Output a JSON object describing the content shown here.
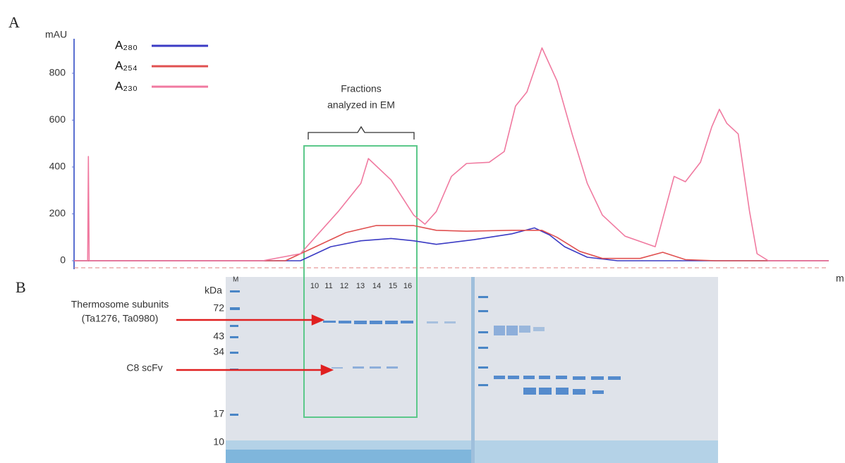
{
  "panel_labels": [
    "A",
    "B"
  ],
  "chart_data": {
    "type": "line",
    "ylabel": "mAU",
    "xlabel": "m",
    "ylim": [
      -30,
      950
    ],
    "yticks": [
      0,
      200,
      400,
      600,
      800
    ],
    "xlim": [
      0,
      100
    ],
    "annotation": [
      "Fractions",
      "analyzed in EM"
    ],
    "series": [
      {
        "name": "A₂₈₀",
        "color": "#3b3bc4",
        "x": [
          0,
          30,
          34,
          38,
          42,
          45,
          48,
          53,
          58,
          61,
          63,
          65,
          68,
          72,
          100
        ],
        "values": [
          0,
          0,
          60,
          85,
          95,
          85,
          70,
          90,
          115,
          140,
          110,
          60,
          15,
          0,
          0
        ]
      },
      {
        "name": "A₂₅₄",
        "color": "#e05050",
        "x": [
          0,
          28,
          32,
          36,
          40,
          45,
          48,
          52,
          58,
          62,
          64,
          67,
          70,
          75,
          78,
          81,
          85,
          100
        ],
        "values": [
          0,
          0,
          60,
          120,
          150,
          150,
          130,
          126,
          130,
          130,
          100,
          40,
          10,
          10,
          36,
          5,
          0,
          0
        ]
      },
      {
        "name": "A₂₃₀",
        "color": "#f07aa0",
        "x": [
          0,
          1.8,
          1.9,
          2.0,
          25,
          30,
          35,
          38,
          39,
          42,
          45,
          46.5,
          48,
          50,
          52,
          55,
          57,
          58.5,
          60,
          62,
          64,
          66,
          68,
          70,
          73,
          77,
          78.5,
          79.5,
          81,
          83,
          84.5,
          85.5,
          86.5,
          88,
          89.5,
          90.5,
          92,
          100
        ],
        "values": [
          0,
          0,
          445,
          0,
          0,
          30,
          210,
          330,
          436,
          345,
          195,
          156,
          210,
          360,
          415,
          420,
          466,
          660,
          720,
          908,
          767,
          540,
          330,
          195,
          105,
          60,
          240,
          360,
          337,
          420,
          571,
          646,
          586,
          541,
          210,
          30,
          0,
          0
        ]
      }
    ]
  },
  "gel": {
    "unit": "kDa",
    "markers": [
      "72",
      "43",
      "34",
      "17",
      "10"
    ],
    "marker_lane": "M",
    "lanes": [
      "10",
      "11",
      "12",
      "13",
      "14",
      "15",
      "16"
    ],
    "bands": [
      {
        "lines": [
          "Thermosome subunits",
          "(Ta1276, Ta0980)"
        ]
      },
      {
        "lines": [
          "C8 scFv"
        ]
      }
    ]
  }
}
